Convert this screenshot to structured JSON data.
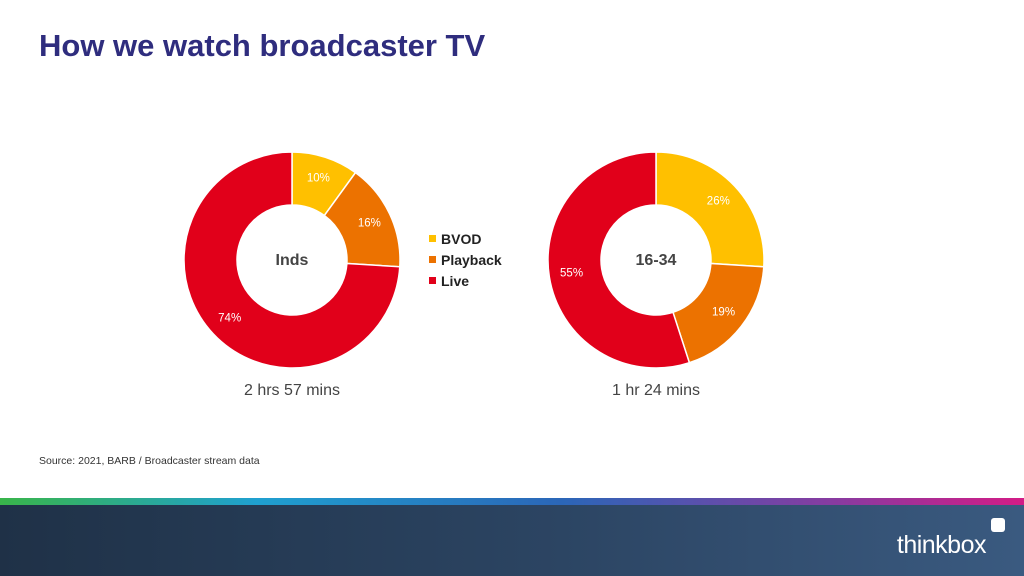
{
  "title": "How we watch broadcaster TV",
  "legend": [
    {
      "label": "BVOD",
      "color": "#ffc000"
    },
    {
      "label": "Playback",
      "color": "#ec7200"
    },
    {
      "label": "Live",
      "color": "#e1001a"
    }
  ],
  "chart_data": [
    {
      "type": "pie",
      "style": "donut",
      "center_label": "Inds",
      "caption": "2 hrs 57 mins",
      "categories": [
        "BVOD",
        "Playback",
        "Live"
      ],
      "values": [
        10,
        16,
        74
      ],
      "data_labels": [
        "10%",
        "16%",
        "74%"
      ],
      "colors": [
        "#ffc000",
        "#ec7200",
        "#e1001a"
      ]
    },
    {
      "type": "pie",
      "style": "donut",
      "center_label": "16-34",
      "caption": "1 hr 24 mins",
      "categories": [
        "BVOD",
        "Playback",
        "Live"
      ],
      "values": [
        26,
        19,
        55
      ],
      "data_labels": [
        "26%",
        "19%",
        "55%"
      ],
      "colors": [
        "#ffc000",
        "#ec7200",
        "#e1001a"
      ]
    }
  ],
  "source": "Source: 2021, BARB / Broadcaster stream data",
  "brand": "thinkbox"
}
